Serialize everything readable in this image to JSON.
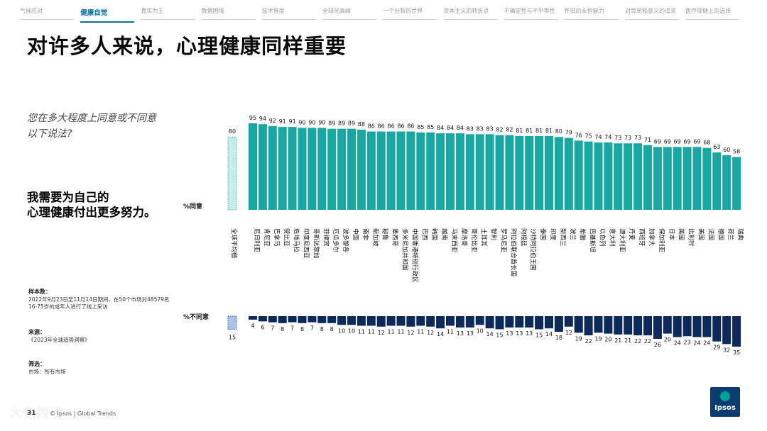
{
  "nav": [
    "气候应对",
    "健康自觉",
    "真实为王",
    "数据困境",
    "技术惟度",
    "全球化高峰",
    "一个分裂的世界",
    "资本主义的转折点",
    "不确定性与不平等性",
    "怀旧的永恒魅力",
    "对简单和意义的追求",
    "医疗保健上的选择"
  ],
  "nav_active": 1,
  "title": "对许多人来说，心理健康同样重要",
  "question": "您在多大程度上同意或不同意以下说法?",
  "statement_lines": [
    "我需要为自己的",
    "心理健康付出更多努力。"
  ],
  "agree_label": "%同意",
  "disagree_label": "%不同意",
  "sample_head": "样本数：",
  "sample_body": "2022年9月23日至11月14日期间，在50个市场对48579名16-75岁的成年人进行了线上采访",
  "source_head": "来源：",
  "source_body": "《2023年全球趋势洞察》",
  "filter_head": "筛选：",
  "filter_body": "市场：所有市场",
  "page_number": "31",
  "footer_source": "© Ipsos | Global Trends",
  "watermark": "大数跨境",
  "logo_text": "Ipsos",
  "colors": {
    "agree": "#19a8a1",
    "disagree": "#0b2a5b",
    "avg_agree": "#c6ecea",
    "avg_disagree": "#a9c4e6",
    "nav_active": "#0b6fa4"
  },
  "chart_data": {
    "type": "bar",
    "average": {
      "label": "全球平均值",
      "agree": 80,
      "disagree": 15
    },
    "categories": [
      "尼日利亚",
      "肯尼亚",
      "巴拿马",
      "赞比亚",
      "危地马拉",
      "印度尼西亚",
      "哥斯达黎加",
      "菲律宾",
      "厄瓜多尔",
      "波多黎各",
      "中国",
      "南非",
      "新加坡",
      "秘鲁",
      "墨西哥",
      "多米尼加共和国",
      "中国香港特别行政区",
      "巴西",
      "韩国",
      "越南",
      "马来西亚",
      "摩洛哥",
      "哥伦比亚",
      "土耳其",
      "智利",
      "罗马尼亚",
      "阿拉伯联合酋长国",
      "阿根廷",
      "沙特阿拉伯王国",
      "泰国",
      "印度",
      "新西兰",
      "波兰",
      "希腊",
      "巴基斯坦",
      "以色列",
      "意大利",
      "澳大利亚",
      "丹麦",
      "西班牙",
      "加拿大",
      "保加利亚",
      "日本",
      "英国",
      "比利时",
      "美国",
      "法国",
      "德国",
      "荷兰",
      "瑞典"
    ],
    "series": [
      {
        "name": "%同意",
        "values": [
          95,
          94,
          92,
          91,
          91,
          90,
          90,
          90,
          89,
          89,
          89,
          88,
          86,
          86,
          86,
          86,
          86,
          85,
          85,
          84,
          84,
          84,
          83,
          83,
          83,
          82,
          82,
          81,
          81,
          81,
          81,
          80,
          79,
          76,
          75,
          74,
          74,
          73,
          73,
          73,
          71,
          69,
          69,
          69,
          69,
          69,
          68,
          63,
          60,
          58
        ]
      },
      {
        "name": "%不同意",
        "values": [
          4,
          6,
          7,
          8,
          7,
          8,
          7,
          8,
          8,
          10,
          10,
          11,
          11,
          12,
          11,
          11,
          12,
          11,
          12,
          14,
          11,
          13,
          13,
          10,
          14,
          15,
          13,
          13,
          13,
          15,
          14,
          18,
          12,
          19,
          22,
          19,
          20,
          21,
          21,
          22,
          22,
          26,
          20,
          24,
          23,
          24,
          24,
          29,
          32,
          35
        ]
      }
    ],
    "agree_ylim": [
      0,
      100
    ],
    "disagree_ylim": [
      0,
      40
    ]
  }
}
